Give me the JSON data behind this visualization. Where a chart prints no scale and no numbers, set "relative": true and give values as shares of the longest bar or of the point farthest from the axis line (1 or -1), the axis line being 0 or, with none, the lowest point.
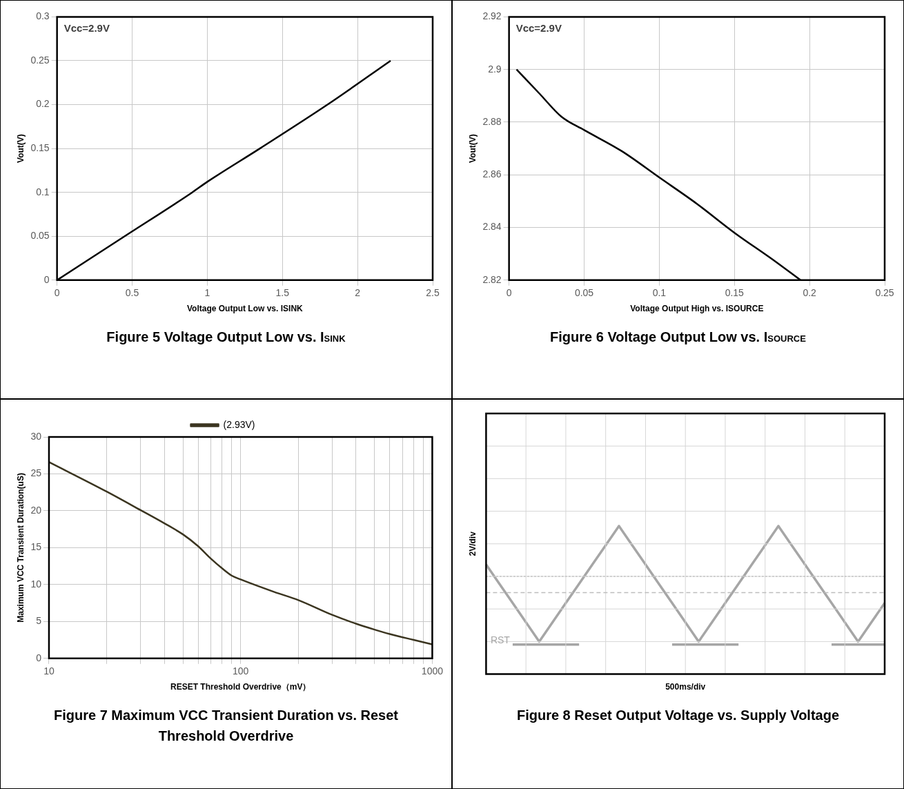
{
  "chart_data": [
    {
      "type": "line",
      "title": "Figure 5 Voltage Output Low vs. I$_{SINK}$",
      "xlabel": "Voltage Output Low vs. ISINK",
      "ylabel": "Vout(V)",
      "annotations": [
        "Vcc=2.9V"
      ],
      "x": [
        0,
        0.45,
        0.9,
        1.0,
        1.35,
        1.8,
        2.22
      ],
      "series": [
        {
          "color": "#000000",
          "values": [
            0,
            0.05,
            0.1,
            0.112,
            0.15,
            0.2,
            0.25
          ]
        }
      ],
      "xlim": [
        0,
        2.5
      ],
      "xticks": [
        0,
        0.5,
        1,
        1.5,
        2,
        2.5
      ],
      "ylim": [
        0,
        0.3
      ],
      "yticks": [
        0,
        0.05,
        0.1,
        0.15,
        0.2,
        0.25,
        0.3
      ],
      "grid": true
    },
    {
      "type": "line",
      "title": "Figure 6 Voltage Output Low vs. I$_{SOURCE}$",
      "xlabel": "Voltage Output High vs. ISOURCE",
      "ylabel": "Vout(V)",
      "annotations": [
        "Vcc=2.9V"
      ],
      "x": [
        0.005,
        0.02,
        0.035,
        0.05,
        0.075,
        0.1,
        0.125,
        0.15,
        0.175,
        0.194
      ],
      "series": [
        {
          "color": "#000000",
          "values": [
            2.9,
            2.891,
            2.882,
            2.877,
            2.869,
            2.859,
            2.849,
            2.838,
            2.828,
            2.82
          ]
        }
      ],
      "xlim": [
        0,
        0.25
      ],
      "xticks": [
        0,
        0.05,
        0.1,
        0.15,
        0.2,
        0.25
      ],
      "ylim": [
        2.82,
        2.92
      ],
      "yticks": [
        2.82,
        2.84,
        2.86,
        2.88,
        2.9,
        2.92
      ],
      "grid": true
    },
    {
      "type": "line",
      "title": "Figure 7 Maximum VCC Transient Duration vs. Reset Threshold Overdrive",
      "xlabel": "RESET Threshold Overdrive（mV）",
      "ylabel": "Maximum VCC Transient Duration(uS)",
      "x": [
        10,
        20,
        30,
        40,
        50,
        60,
        70,
        80,
        90,
        100,
        150,
        200,
        300,
        400,
        500,
        600,
        800,
        1000
      ],
      "series": [
        {
          "name": "(2.93V)",
          "color": "#3b3520",
          "values": [
            26.6,
            22.6,
            20.1,
            18.3,
            16.8,
            15.2,
            13.5,
            12.2,
            11.2,
            10.7,
            9.0,
            7.9,
            5.9,
            4.7,
            3.9,
            3.3,
            2.5,
            1.9
          ]
        }
      ],
      "log": "x",
      "xlim": [
        10,
        1000
      ],
      "xticks": [
        10,
        {
          "value": 20,
          "label": null
        },
        {
          "value": 30,
          "label": null
        },
        {
          "value": 40,
          "label": null
        },
        {
          "value": 50,
          "label": null
        },
        {
          "value": 60,
          "label": null
        },
        {
          "value": 70,
          "label": null
        },
        {
          "value": 80,
          "label": null
        },
        {
          "value": 90,
          "label": null
        },
        100,
        {
          "value": 200,
          "label": null
        },
        {
          "value": 300,
          "label": null
        },
        {
          "value": 400,
          "label": null
        },
        {
          "value": 500,
          "label": null
        },
        {
          "value": 600,
          "label": null
        },
        {
          "value": 700,
          "label": null
        },
        {
          "value": 800,
          "label": null
        },
        {
          "value": 900,
          "label": null
        },
        1000
      ],
      "ylim": [
        0,
        30
      ],
      "yticks": [
        0,
        5,
        10,
        15,
        20,
        25,
        30
      ],
      "grid": true,
      "legend": "top"
    },
    {
      "type": "line",
      "title": "Figure 8 Reset Output Voltage vs. Supply Voltage",
      "xlabel": "500ms/div",
      "ylabel": "2V/div",
      "relative": true,
      "categories": [
        null,
        null,
        null,
        null,
        null,
        null,
        null,
        null,
        null,
        null,
        null,
        null,
        null,
        null,
        null,
        null,
        null,
        null,
        null,
        null,
        null,
        null,
        null,
        null,
        null,
        null,
        null,
        null,
        null,
        null,
        null
      ],
      "series": [
        {
          "color": "#a6a6a6",
          "values": [
            0.74,
            0.61,
            0.48,
            0.35,
            0.22,
            0.35,
            0.48,
            0.61,
            0.74,
            0.87,
            1,
            0.87,
            0.74,
            0.61,
            0.48,
            0.35,
            0.22,
            0.35,
            0.48,
            0.61,
            0.74,
            0.87,
            1,
            0.87,
            0.74,
            0.61,
            0.48,
            0.35,
            0.22,
            0.35,
            0.48
          ]
        },
        {
          "name": "RST",
          "color": "#a6a6a6",
          "values": [
            null,
            null,
            0.2,
            0.2,
            0.2,
            0.2,
            0.2,
            0.2,
            null,
            null,
            null,
            null,
            null,
            null,
            0.2,
            0.2,
            0.2,
            0.2,
            0.2,
            0.2,
            null,
            null,
            null,
            null,
            null,
            null,
            0.2,
            0.2,
            0.2,
            0.2,
            0.2
          ]
        }
      ],
      "ref_lines": [
        {
          "axis": "y",
          "value": 0.66,
          "line_style": "dotted",
          "color": "#bdbdbd"
        },
        {
          "axis": "y",
          "value": 0.55,
          "line_style": "dashed",
          "color": "#bdbdbd"
        }
      ],
      "grid": true
    }
  ]
}
